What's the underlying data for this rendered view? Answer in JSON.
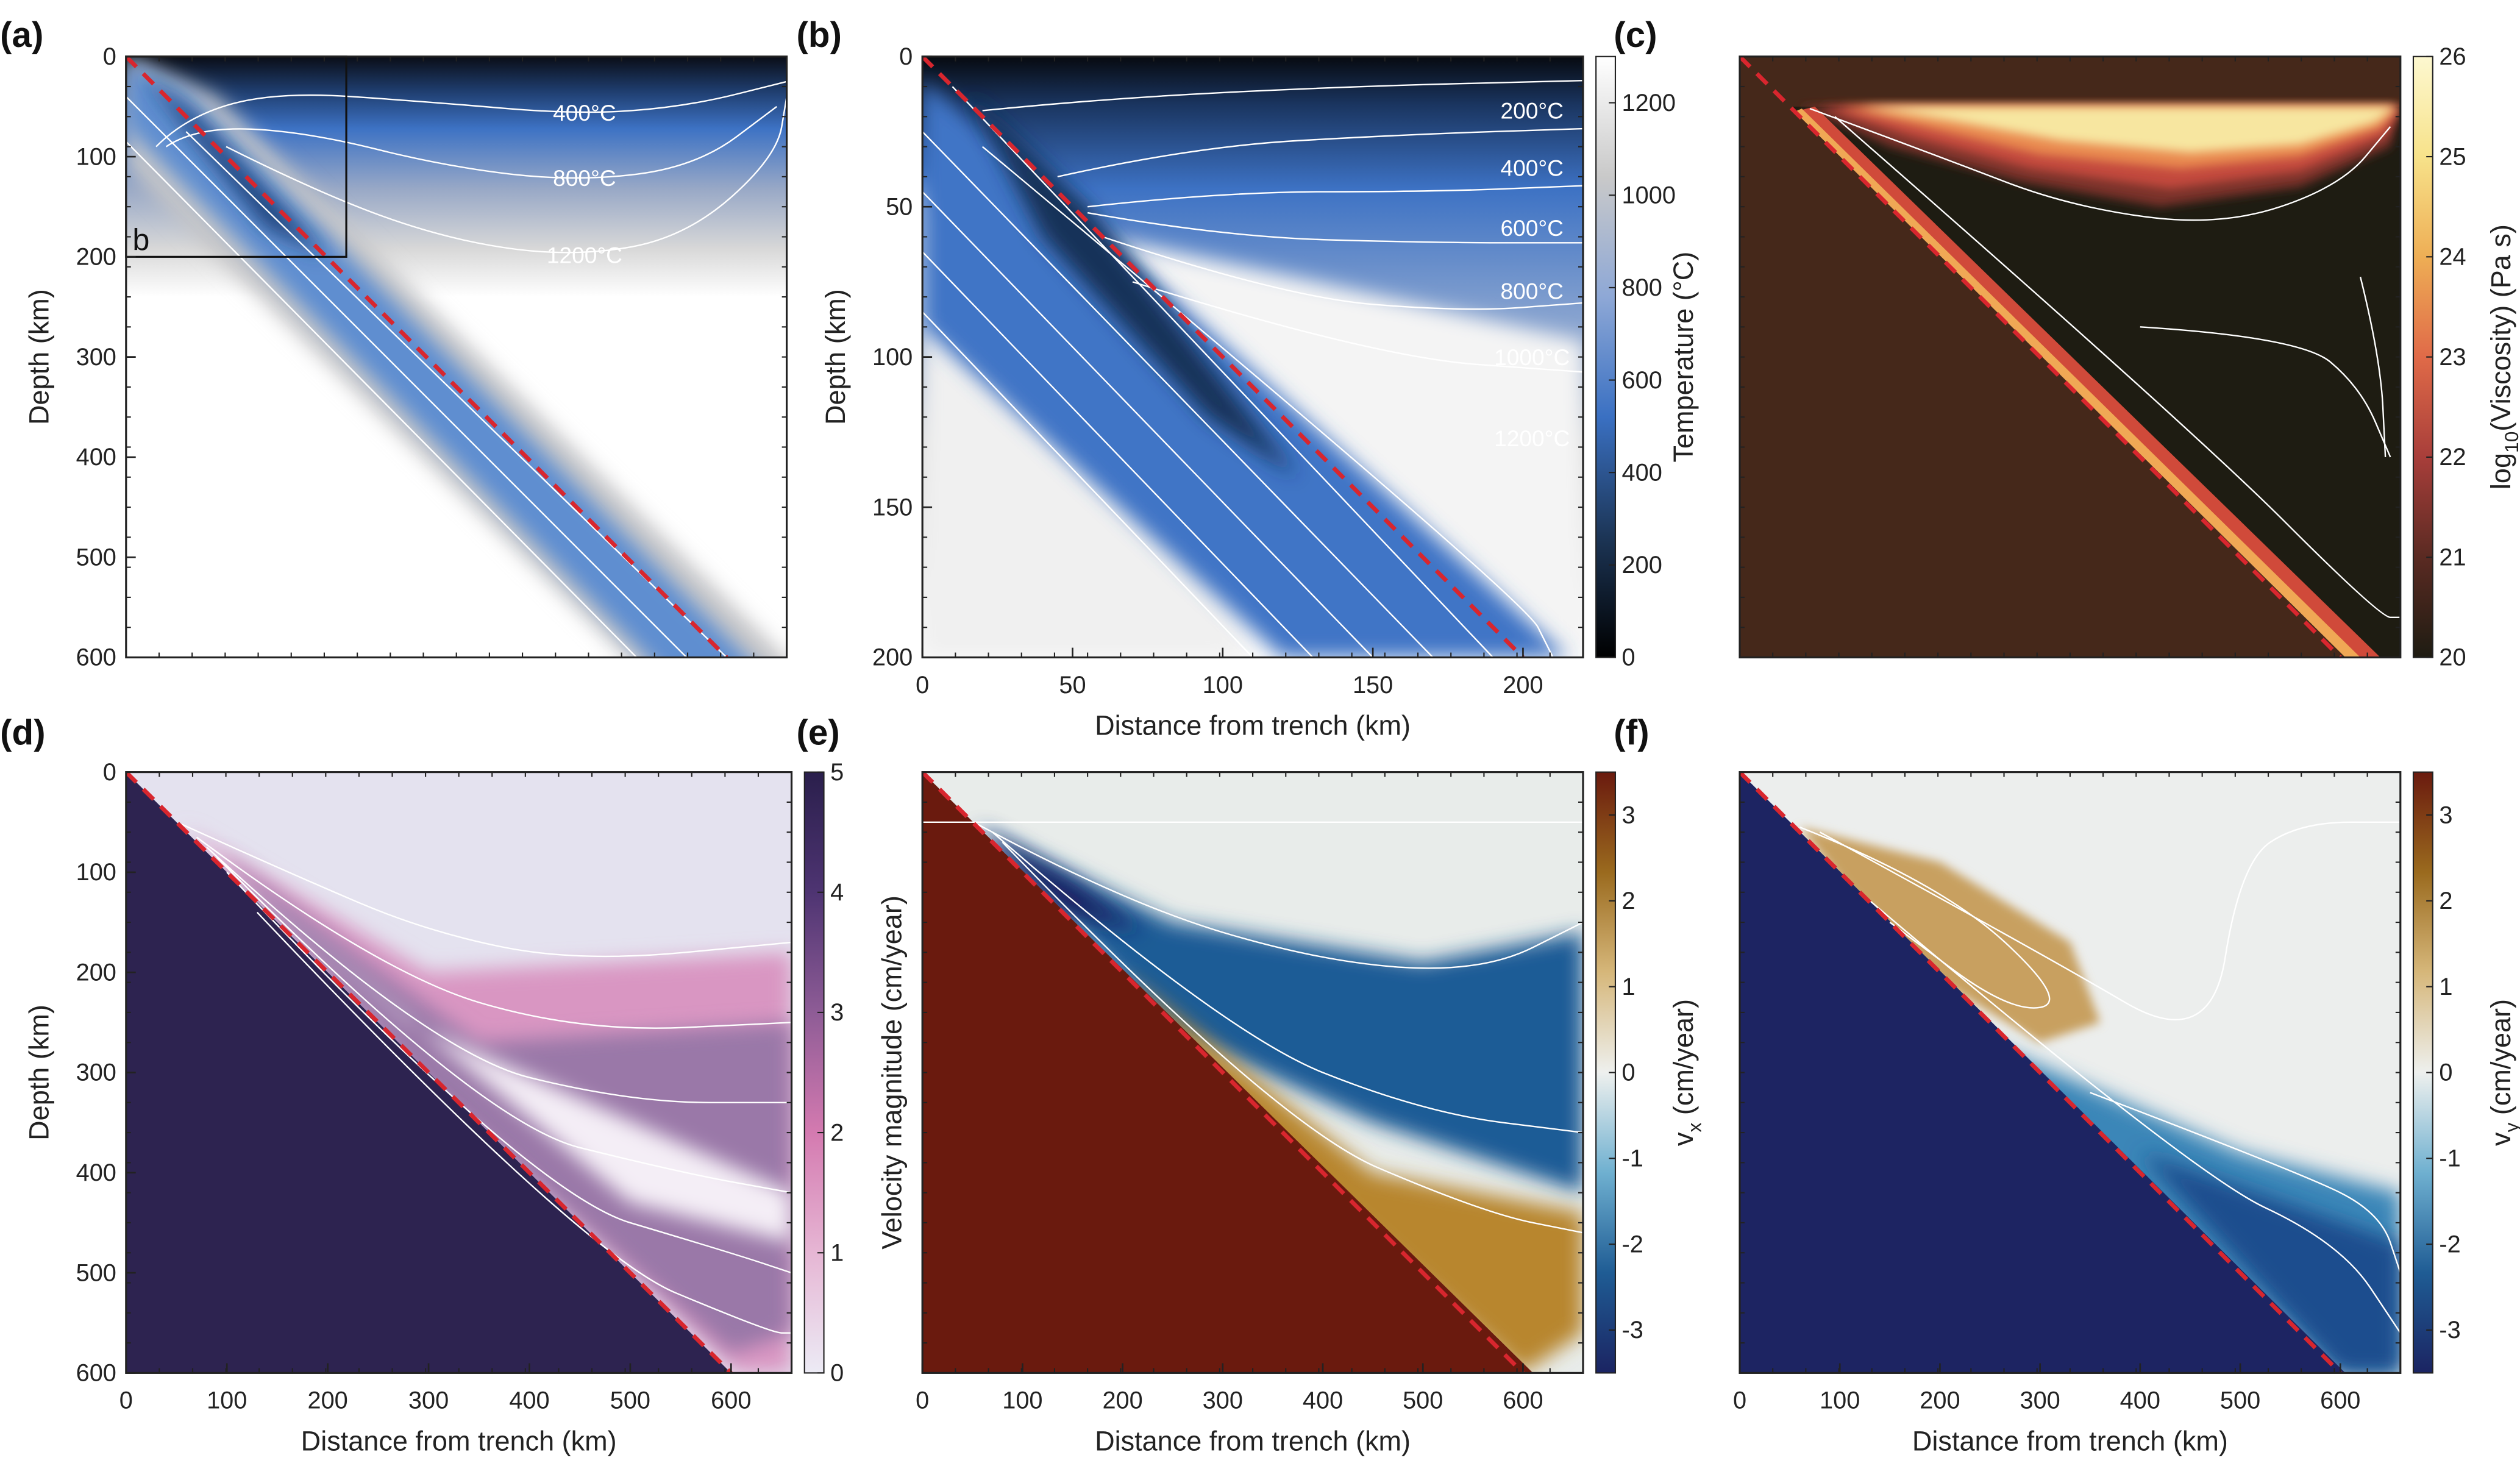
{
  "figure": {
    "panels": [
      {
        "id": "a",
        "label": "(a)",
        "type": "heatmap",
        "xlim": [
          0,
          660
        ],
        "ylim": [
          0,
          600
        ],
        "xticks": [],
        "yticks": [
          0,
          100,
          200,
          300,
          400,
          500,
          600
        ],
        "xlabel": "",
        "ylabel": "Depth (km)",
        "contour_labels": [
          "400°C",
          "800°C",
          "1200°C"
        ],
        "inset_label": "b",
        "inset_box": {
          "x": [
            0,
            220
          ],
          "y": [
            0,
            200
          ]
        },
        "slab_line": {
          "from": [
            0,
            0
          ],
          "to": [
            600,
            600
          ],
          "color": "#d8262e",
          "style": "dashed"
        }
      },
      {
        "id": "b",
        "label": "(b)",
        "type": "heatmap",
        "xlim": [
          0,
          220
        ],
        "ylim": [
          0,
          200
        ],
        "xticks": [
          0,
          50,
          100,
          150,
          200
        ],
        "yticks": [
          0,
          50,
          100,
          150,
          200
        ],
        "xlabel": "Distance from trench (km)",
        "ylabel": "Depth (km)",
        "contour_labels": [
          "200°C",
          "400°C",
          "600°C",
          "800°C",
          "1000°C",
          "1200°C"
        ],
        "slab_line": {
          "from": [
            0,
            0
          ],
          "to": [
            200,
            200
          ],
          "color": "#d8262e",
          "style": "dashed"
        },
        "colorbar": {
          "label": "Temperature (°C)",
          "label_sub": "",
          "label_rest": "",
          "range": [
            0,
            1300
          ],
          "ticks": [
            0,
            200,
            400,
            600,
            800,
            1000,
            1200
          ],
          "colors": [
            "#000000",
            "#1c3556",
            "#3a70c2",
            "#8ea8d6",
            "#c9c9c9",
            "#ffffff"
          ]
        }
      },
      {
        "id": "c",
        "label": "(c)",
        "type": "heatmap",
        "xlim": [
          0,
          660
        ],
        "ylim": [
          0,
          600
        ],
        "xticks": [],
        "yticks": [],
        "xlabel": "",
        "ylabel": "",
        "slab_line": {
          "from": [
            0,
            0
          ],
          "to": [
            600,
            600
          ],
          "color": "#d8262e",
          "style": "dashed"
        },
        "colorbar": {
          "label": "log",
          "label_sub": "10",
          "label_rest": "(Viscosity) (Pa s)",
          "range": [
            20,
            26
          ],
          "ticks": [
            20,
            21,
            22,
            23,
            24,
            25,
            26
          ],
          "colors": [
            "#1e1c12",
            "#5a2a22",
            "#a83e3a",
            "#e06a48",
            "#eeae55",
            "#f7e28a",
            "#fdf8d0"
          ]
        }
      },
      {
        "id": "d",
        "label": "(d)",
        "type": "heatmap",
        "xlim": [
          0,
          660
        ],
        "ylim": [
          0,
          600
        ],
        "xticks": [
          0,
          100,
          200,
          300,
          400,
          500,
          600
        ],
        "yticks": [
          0,
          100,
          200,
          300,
          400,
          500,
          600
        ],
        "xlabel": "Distance from trench (km)",
        "ylabel": "Depth (km)",
        "slab_line": {
          "from": [
            0,
            0
          ],
          "to": [
            600,
            600
          ],
          "color": "#d8262e",
          "style": "dashed"
        },
        "colorbar": {
          "label": "Velocity magnitude (cm/year)",
          "label_sub": "",
          "label_rest": "",
          "range": [
            0,
            5
          ],
          "ticks": [
            0,
            1,
            2,
            3,
            4,
            5
          ],
          "colors": [
            "#ecebf5",
            "#e6b6d4",
            "#d47ab0",
            "#8e5c96",
            "#4e3472",
            "#2a1f4c"
          ]
        }
      },
      {
        "id": "e",
        "label": "(e)",
        "type": "heatmap",
        "xlim": [
          0,
          660
        ],
        "ylim": [
          0,
          600
        ],
        "xticks": [
          0,
          100,
          200,
          300,
          400,
          500,
          600
        ],
        "yticks": [],
        "xlabel": "Distance from trench (km)",
        "ylabel": "",
        "slab_line": {
          "from": [
            0,
            0
          ],
          "to": [
            600,
            600
          ],
          "color": "#d8262e",
          "style": "dashed"
        },
        "colorbar": {
          "label": "v",
          "label_sub": "x",
          "label_rest": " (cm/year)",
          "range": [
            -3.5,
            3.5
          ],
          "ticks": [
            -3,
            -2,
            -1,
            0,
            1,
            2,
            3
          ],
          "colors": [
            "#1b2462",
            "#1f5c94",
            "#6fb0d0",
            "#eef0ee",
            "#d6b77a",
            "#9a6a1e",
            "#6a1a0e"
          ]
        }
      },
      {
        "id": "f",
        "label": "(f)",
        "type": "heatmap",
        "xlim": [
          0,
          660
        ],
        "ylim": [
          0,
          600
        ],
        "xticks": [
          0,
          100,
          200,
          300,
          400,
          500,
          600
        ],
        "yticks": [],
        "xlabel": "Distance from trench (km)",
        "ylabel": "",
        "slab_line": {
          "from": [
            0,
            0
          ],
          "to": [
            600,
            600
          ],
          "color": "#d8262e",
          "style": "dashed"
        },
        "colorbar": {
          "label": "v",
          "label_sub": "y",
          "label_rest": " (cm/year)",
          "range": [
            -3.5,
            3.5
          ],
          "ticks": [
            -3,
            -2,
            -1,
            0,
            1,
            2,
            3
          ],
          "colors": [
            "#1b2462",
            "#1f5c94",
            "#6fb0d0",
            "#eef0ee",
            "#d6b77a",
            "#9a6a1e",
            "#6a1a0e"
          ]
        }
      }
    ]
  }
}
